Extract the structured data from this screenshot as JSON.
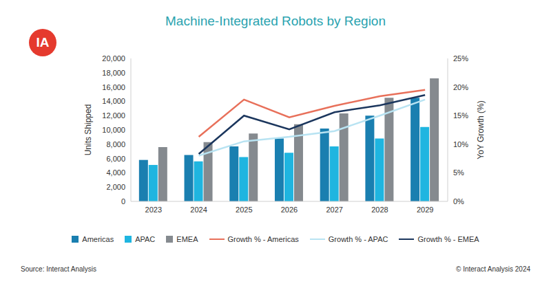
{
  "chart_data": {
    "type": "bar",
    "title": "Machine-Integrated Robots by Region",
    "logo": "IA",
    "y_label": "Units Shipped",
    "y2_label": "YoY Growth (%)",
    "source": "Source: Interact Analysis",
    "copyright": "© Interact Analysis 2024",
    "categories": [
      "2023",
      "2024",
      "2025",
      "2026",
      "2027",
      "2028",
      "2029"
    ],
    "series": [
      {
        "name": "Americas",
        "type": "bar",
        "color": "#1a7fb0",
        "values": [
          5800,
          6500,
          7700,
          8800,
          10200,
          12000,
          14500
        ]
      },
      {
        "name": "APAC",
        "type": "bar",
        "color": "#1fb5e0",
        "values": [
          5100,
          5600,
          6200,
          6800,
          7700,
          8800,
          10400
        ]
      },
      {
        "name": "EMEA",
        "type": "bar",
        "color": "#858a8f",
        "values": [
          7600,
          8300,
          9500,
          10800,
          12300,
          14500,
          17200
        ]
      },
      {
        "name": "Growth % - Americas",
        "type": "line",
        "axis": "y2",
        "color": "#e8705a",
        "line_style": "solid",
        "values": [
          null,
          11.3,
          17.8,
          14.7,
          16.7,
          18.4,
          19.5
        ]
      },
      {
        "name": "Growth % - APAC",
        "type": "line",
        "axis": "y2",
        "color": "#b8e3f2",
        "line_style": "solid",
        "values": [
          null,
          8.0,
          10.5,
          11.3,
          12.3,
          15.0,
          17.8
        ]
      },
      {
        "name": "Growth % - EMEA",
        "type": "line",
        "axis": "y2",
        "color": "#1b365d",
        "line_style": "solid",
        "values": [
          null,
          8.3,
          15.0,
          12.6,
          15.6,
          16.8,
          18.6
        ]
      }
    ],
    "ylim": [
      0,
      20000
    ],
    "yticks": [
      0,
      {
        "value": 2000,
        "label": "2,000"
      },
      {
        "value": 4000,
        "label": "4,000"
      },
      {
        "value": 6000,
        "label": "6,000"
      },
      {
        "value": 8000,
        "label": "8,000"
      },
      {
        "value": 10000,
        "label": "10,000"
      },
      {
        "value": 12000,
        "label": "12,000"
      },
      {
        "value": 14000,
        "label": "14,000"
      },
      {
        "value": 16000,
        "label": "16,000"
      },
      {
        "value": 18000,
        "label": "18,000"
      },
      {
        "value": 20000,
        "label": "20,000"
      }
    ],
    "y2lim": [
      0,
      25
    ],
    "y2ticks": [
      {
        "value": 0,
        "label": "0%"
      },
      {
        "value": 5,
        "label": "5%"
      },
      {
        "value": 10,
        "label": "10%"
      },
      {
        "value": 15,
        "label": "15%"
      },
      {
        "value": 20,
        "label": "20%"
      },
      {
        "value": 25,
        "label": "25%"
      }
    ],
    "legend": "bottom",
    "grid": false
  }
}
